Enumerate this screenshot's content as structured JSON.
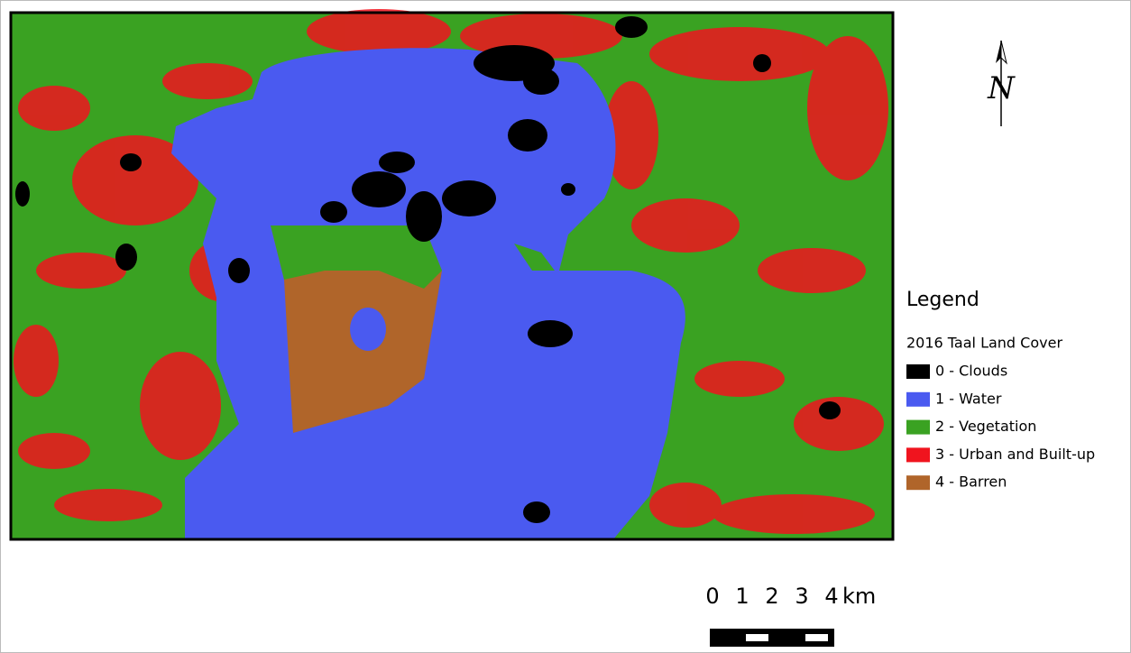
{
  "map": {
    "north_arrow": "N",
    "legend": {
      "title": "Legend",
      "subtitle": "2016 Taal Land Cover",
      "items": [
        {
          "label": "0 - Clouds",
          "color": "#000000"
        },
        {
          "label": "1 - Water",
          "color": "#4a5af0"
        },
        {
          "label": "2 - Vegetation",
          "color": "#3aa222"
        },
        {
          "label": "3 - Urban and Built-up",
          "color": "#f0141e"
        },
        {
          "label": "4 - Barren",
          "color": "#b0652a"
        }
      ]
    },
    "scale_bar": {
      "labels": [
        "0",
        "1",
        "2",
        "3",
        "4"
      ],
      "unit": "km"
    }
  }
}
